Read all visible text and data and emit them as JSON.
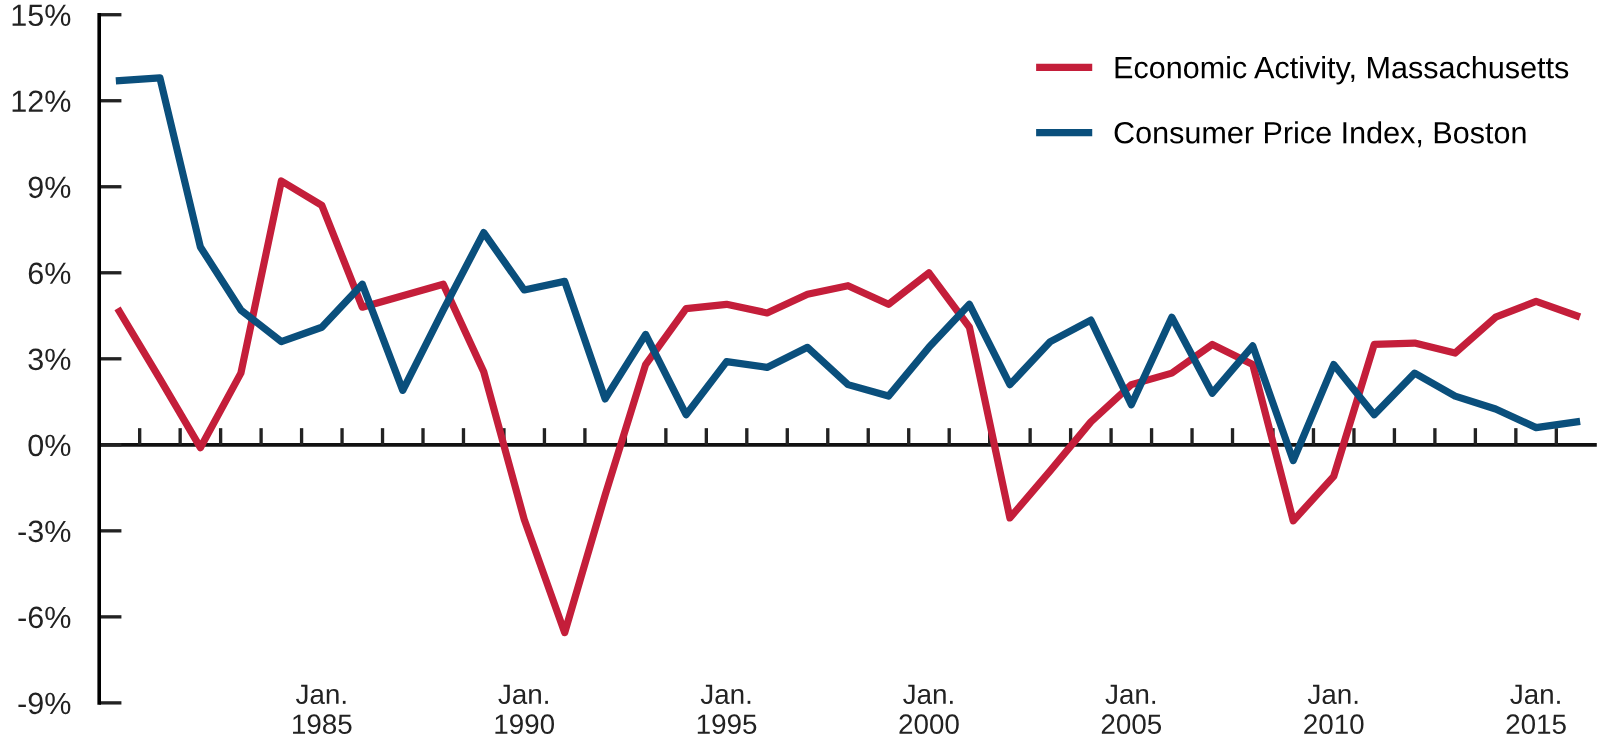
{
  "chart_data": {
    "type": "line",
    "categories": [
      null,
      null,
      null,
      null,
      null,
      "Jan.\n1985",
      null,
      null,
      null,
      null,
      "Jan.\n1990",
      null,
      null,
      null,
      null,
      "Jan.\n1995",
      null,
      null,
      null,
      null,
      "Jan.\n2000",
      null,
      null,
      null,
      null,
      "Jan.\n2005",
      null,
      null,
      null,
      null,
      "Jan.\n2010",
      null,
      null,
      null,
      null,
      "Jan.\n2015",
      null
    ],
    "series": [
      {
        "name": "Economic Activity, Massachusetts",
        "color": "#c41e3a",
        "values": [
          4.65,
          2.3,
          -0.1,
          2.5,
          9.2,
          8.35,
          4.8,
          5.2,
          5.6,
          2.55,
          -2.6,
          -6.55,
          -1.75,
          2.8,
          4.75,
          4.9,
          4.6,
          5.25,
          5.55,
          4.9,
          6.0,
          4.1,
          -2.55,
          -0.9,
          0.8,
          2.1,
          2.5,
          3.5,
          2.8,
          -2.65,
          -1.1,
          3.5,
          3.55,
          3.2,
          4.45,
          5.0,
          4.5
        ]
      },
      {
        "name": "Consumer Price Index, Boston",
        "color": "#0a4f7c",
        "values": [
          12.7,
          12.8,
          6.9,
          4.7,
          3.6,
          4.1,
          5.6,
          1.9,
          4.7,
          7.4,
          5.4,
          5.7,
          1.6,
          3.85,
          1.05,
          2.9,
          2.7,
          3.4,
          2.1,
          1.7,
          3.4,
          4.9,
          2.1,
          3.6,
          4.35,
          1.4,
          4.45,
          1.8,
          3.45,
          -0.55,
          2.8,
          1.05,
          2.5,
          1.7,
          1.25,
          0.6,
          0.8
        ]
      }
    ],
    "ylim": [
      -9,
      15
    ],
    "yticks": [
      {
        "value": -9,
        "label": "-9%"
      },
      {
        "value": -6,
        "label": "-6%"
      },
      {
        "value": -3,
        "label": "-3%"
      },
      {
        "value": 0,
        "label": "0%"
      },
      {
        "value": 3,
        "label": "3%"
      },
      {
        "value": 6,
        "label": "6%"
      },
      {
        "value": 9,
        "label": "9%"
      },
      {
        "value": 12,
        "label": "12%"
      },
      {
        "value": 15,
        "label": "15%"
      }
    ],
    "ref_lines": [
      {
        "axis": "y",
        "value": 0,
        "color": "#111111"
      }
    ],
    "grid": false,
    "legend": "top right",
    "marker": "none",
    "line_style": "solid"
  }
}
